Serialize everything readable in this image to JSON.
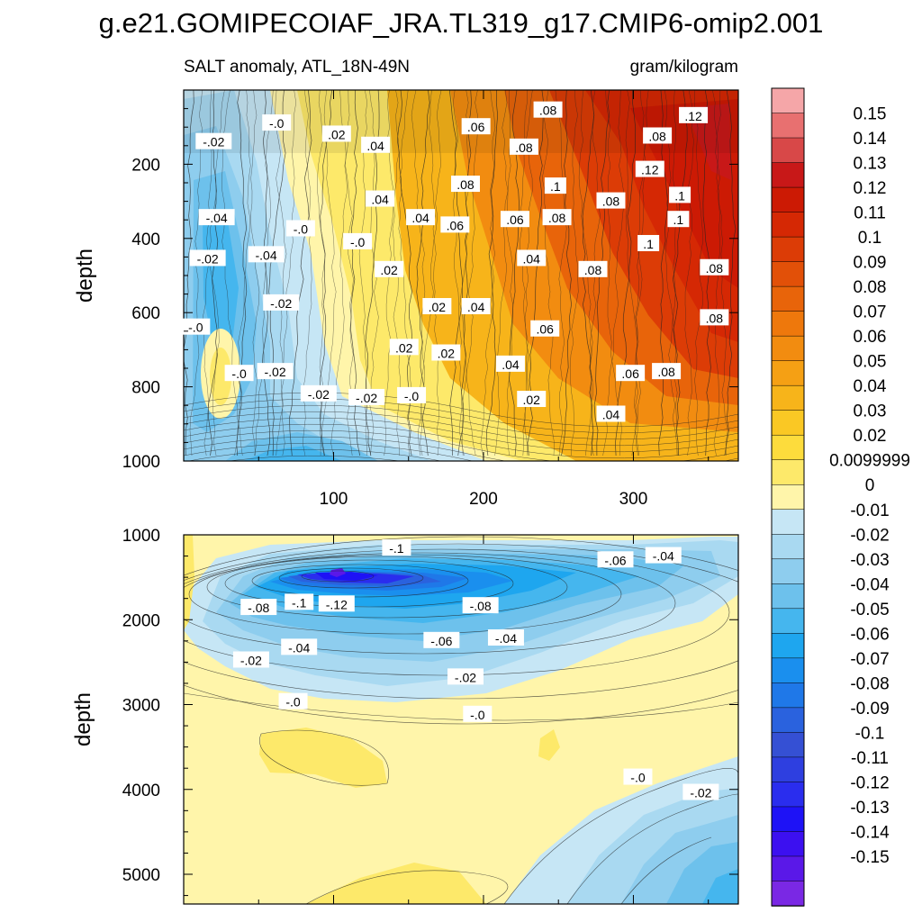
{
  "title": "g.e21.GOMIPECOIAF_JRA.TL319_g17.CMIP6-omip2.001",
  "colors": {
    "positive_scale": [
      "#FFF5AA",
      "#FDE96A",
      "#FDDC3C",
      "#FAC824",
      "#F7B41A",
      "#F5A014",
      "#F28C10",
      "#EE780C",
      "#E8640A",
      "#E25008",
      "#DC3C06",
      "#D52804",
      "#CC1A04",
      "#C81818",
      "#D84848",
      "#E87070",
      "#F5A6A8"
    ],
    "negative_scale": [
      "#C6E6F5",
      "#A9D9F1",
      "#8ECDEE",
      "#6DC1EC",
      "#45B6EE",
      "#1EA6EF",
      "#1A8FEE",
      "#1F78E8",
      "#2A62DE",
      "#3550D4",
      "#2E3FE0",
      "#2A2DEE",
      "#1E12F6",
      "#3C10F0",
      "#5A18E8",
      "#7A28E4"
    ]
  },
  "chart_data": [
    {
      "type": "heatmap",
      "panel": "upper",
      "title_left": "SALT anomaly, ATL_18N-49N",
      "title_right": "gram/kilogram",
      "ylabel": "depth",
      "xlabel": "",
      "xlim": [
        0,
        370
      ],
      "ylim": [
        1000,
        0
      ],
      "xticks": [
        100,
        200,
        300
      ],
      "yticks": [
        200,
        400,
        600,
        800,
        1000
      ],
      "contour_labels": [
        {
          "t": "-.02",
          "x": 20,
          "y": 140
        },
        {
          "t": "-.0",
          "x": 62,
          "y": 90
        },
        {
          "t": ".02",
          "x": 102,
          "y": 120
        },
        {
          "t": ".04",
          "x": 128,
          "y": 150
        },
        {
          "t": ".06",
          "x": 195,
          "y": 100
        },
        {
          "t": ".08",
          "x": 243,
          "y": 55
        },
        {
          "t": ".08",
          "x": 227,
          "y": 155
        },
        {
          "t": ".12",
          "x": 340,
          "y": 70
        },
        {
          "t": ".08",
          "x": 316,
          "y": 125
        },
        {
          "t": ".12",
          "x": 311,
          "y": 215
        },
        {
          "t": ".08",
          "x": 188,
          "y": 255
        },
        {
          "t": ".1",
          "x": 248,
          "y": 260
        },
        {
          "t": ".04",
          "x": 131,
          "y": 295
        },
        {
          "t": "-.04",
          "x": 22,
          "y": 345
        },
        {
          "t": ".04",
          "x": 158,
          "y": 345
        },
        {
          "t": ".06",
          "x": 181,
          "y": 365
        },
        {
          "t": ".06",
          "x": 221,
          "y": 350
        },
        {
          "t": ".08",
          "x": 249,
          "y": 345
        },
        {
          "t": ".08",
          "x": 285,
          "y": 300
        },
        {
          "t": ".1",
          "x": 331,
          "y": 285
        },
        {
          "t": ".1",
          "x": 330,
          "y": 350
        },
        {
          "t": ".1",
          "x": 310,
          "y": 415
        },
        {
          "t": "-.0",
          "x": 78,
          "y": 375
        },
        {
          "t": "-.0",
          "x": 116,
          "y": 410
        },
        {
          "t": "-.04",
          "x": 55,
          "y": 445
        },
        {
          "t": "-.02",
          "x": 16,
          "y": 455
        },
        {
          "t": ".02",
          "x": 137,
          "y": 485
        },
        {
          "t": ".04",
          "x": 232,
          "y": 455
        },
        {
          "t": ".08",
          "x": 273,
          "y": 485
        },
        {
          "t": ".08",
          "x": 354,
          "y": 480
        },
        {
          "t": "-.02",
          "x": 65,
          "y": 575
        },
        {
          "t": ".02",
          "x": 169,
          "y": 585
        },
        {
          "t": ".04",
          "x": 195,
          "y": 585
        },
        {
          "t": "-.0",
          "x": 8,
          "y": 640
        },
        {
          "t": ".06",
          "x": 241,
          "y": 645
        },
        {
          "t": ".08",
          "x": 354,
          "y": 615
        },
        {
          "t": ".02",
          "x": 147,
          "y": 695
        },
        {
          "t": ".02",
          "x": 175,
          "y": 710
        },
        {
          "t": ".04",
          "x": 218,
          "y": 740
        },
        {
          "t": "-.0",
          "x": 37,
          "y": 765
        },
        {
          "t": "-.02",
          "x": 61,
          "y": 760
        },
        {
          "t": ".06",
          "x": 298,
          "y": 765
        },
        {
          "t": ".08",
          "x": 322,
          "y": 760
        },
        {
          "t": "-.02",
          "x": 90,
          "y": 820
        },
        {
          "t": "-.02",
          "x": 122,
          "y": 830
        },
        {
          "t": "-.0",
          "x": 152,
          "y": 825
        },
        {
          "t": ".02",
          "x": 232,
          "y": 835
        },
        {
          "t": ".04",
          "x": 285,
          "y": 875
        }
      ]
    },
    {
      "type": "heatmap",
      "panel": "lower",
      "ylabel": "depth",
      "xlabel": "",
      "xlim": [
        0,
        370
      ],
      "ylim": [
        5350,
        1000
      ],
      "xticks": [
        100,
        200,
        300
      ],
      "yticks": [
        1000,
        2000,
        3000,
        4000,
        5000
      ],
      "contour_labels": [
        {
          "t": "-.1",
          "x": 142,
          "y": 1160
        },
        {
          "t": "-.06",
          "x": 288,
          "y": 1300
        },
        {
          "t": "-.04",
          "x": 320,
          "y": 1250
        },
        {
          "t": "-.08",
          "x": 50,
          "y": 1860
        },
        {
          "t": "-.1",
          "x": 77,
          "y": 1800
        },
        {
          "t": "-.12",
          "x": 102,
          "y": 1820
        },
        {
          "t": "-.08",
          "x": 198,
          "y": 1840
        },
        {
          "t": "-.06",
          "x": 172,
          "y": 2250
        },
        {
          "t": "-.04",
          "x": 215,
          "y": 2220
        },
        {
          "t": "-.04",
          "x": 77,
          "y": 2330
        },
        {
          "t": "-.02",
          "x": 45,
          "y": 2480
        },
        {
          "t": "-.02",
          "x": 188,
          "y": 2680
        },
        {
          "t": "-.0",
          "x": 73,
          "y": 2970
        },
        {
          "t": "-.0",
          "x": 196,
          "y": 3120
        },
        {
          "t": "-.0",
          "x": 303,
          "y": 3860
        },
        {
          "t": "-.02",
          "x": 345,
          "y": 4040
        }
      ]
    }
  ],
  "colorbar": {
    "labels": [
      "0.15",
      "0.14",
      "0.13",
      "0.12",
      "0.11",
      "0.1",
      "0.09",
      "0.08",
      "0.07",
      "0.06",
      "0.05",
      "0.04",
      "0.03",
      "0.02",
      "0.0099999",
      "0",
      "-0.01",
      "-0.02",
      "-0.03",
      "-0.04",
      "-0.05",
      "-0.06",
      "-0.07",
      "-0.08",
      "-0.09",
      "-0.1",
      "-0.11",
      "-0.12",
      "-0.13",
      "-0.14",
      "-0.15"
    ],
    "colors": [
      "#F5A6A8",
      "#E87070",
      "#D84848",
      "#C81818",
      "#CC1A04",
      "#D52804",
      "#DC3C06",
      "#E25008",
      "#E8640A",
      "#EE780C",
      "#F28C10",
      "#F5A014",
      "#F7B41A",
      "#FAC824",
      "#FDDC3C",
      "#FDE96A",
      "#FFF5AA",
      "#C6E6F5",
      "#A9D9F1",
      "#8ECDEE",
      "#6DC1EC",
      "#45B6EE",
      "#1EA6EF",
      "#1A8FEE",
      "#1F78E8",
      "#2A62DE",
      "#3550D4",
      "#2E3FE0",
      "#2A2DEE",
      "#1E12F6",
      "#3C10F0",
      "#5A18E8",
      "#7A28E4"
    ]
  }
}
